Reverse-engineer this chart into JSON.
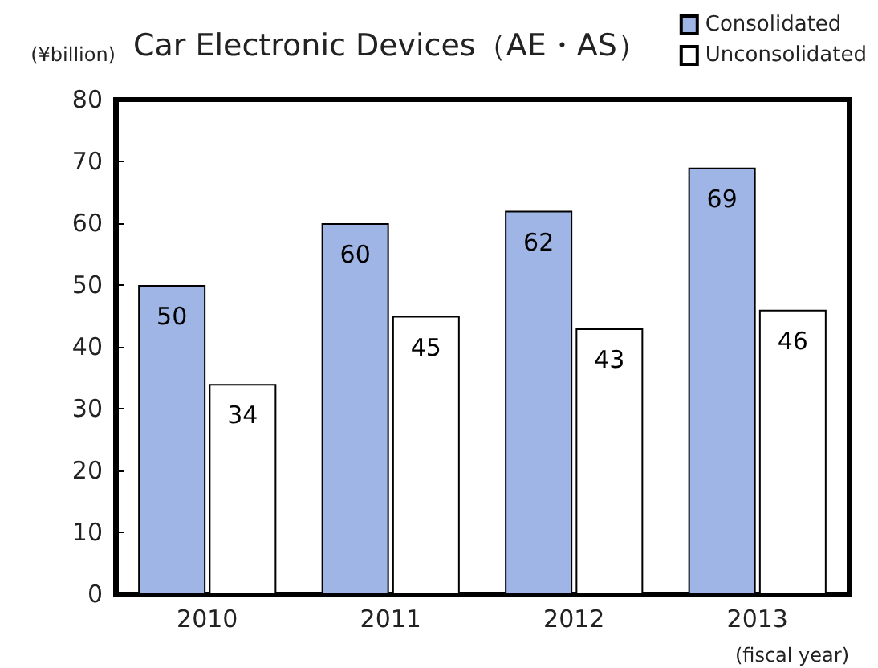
{
  "chart_data": {
    "type": "bar",
    "title": "Car Electronic Devices（AE・AS）",
    "ylabel": "(¥billion)",
    "xlabel": "(fiscal year)",
    "categories": [
      "2010",
      "2011",
      "2012",
      "2013"
    ],
    "series": [
      {
        "name": "Consolidated",
        "color": "#9fb5e6",
        "values": [
          50,
          60,
          62,
          69
        ]
      },
      {
        "name": "Unconsolidated",
        "color": "#ffffff",
        "values": [
          34,
          45,
          43,
          46
        ]
      }
    ],
    "ylim": [
      0,
      80
    ],
    "yticks": [
      0,
      10,
      20,
      30,
      40,
      50,
      60,
      70,
      80
    ],
    "grid": false,
    "legend": "top right",
    "data_labels": true
  }
}
